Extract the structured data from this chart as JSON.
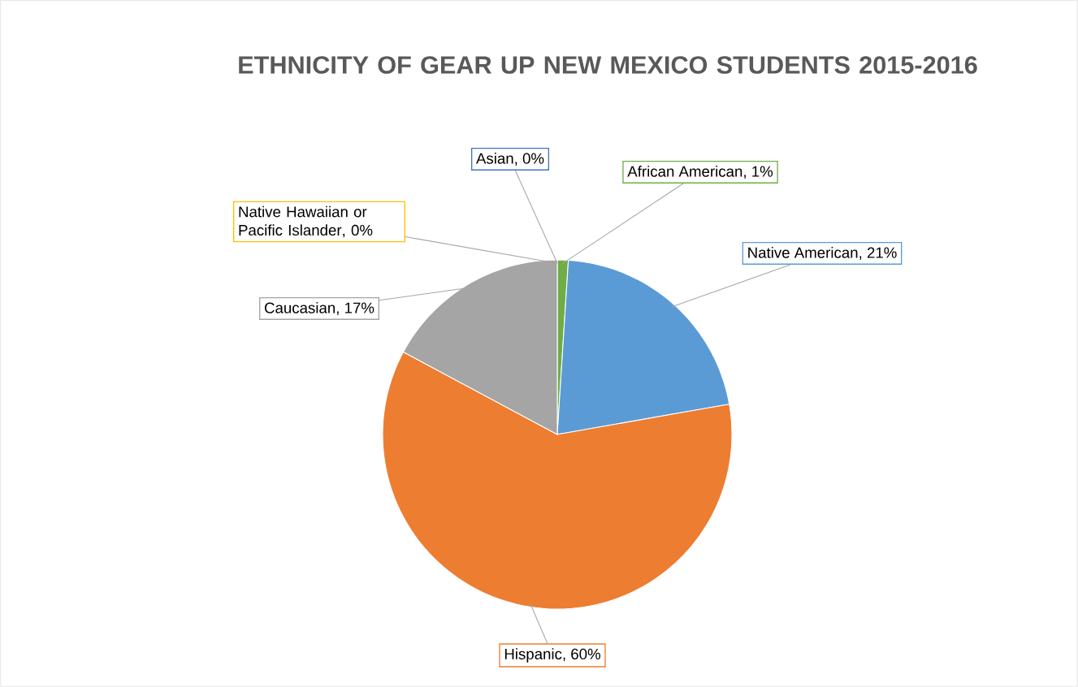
{
  "chart_data": {
    "type": "pie",
    "title": "ETHNICITY OF GEAR UP NEW MEXICO STUDENTS 2015-2016",
    "categories": [
      "African American",
      "Native American",
      "Hispanic",
      "Caucasian",
      "Native Hawaiian or Pacific Islander",
      "Asian"
    ],
    "values": [
      1,
      21,
      60,
      17,
      0,
      0
    ],
    "value_labels": [
      ", 1%",
      ", 21%",
      ", 60%",
      ", 17%",
      ", 0%",
      ", 0%"
    ],
    "colors": [
      "#70ad47",
      "#5b9bd5",
      "#ed7d31",
      "#a5a5a5",
      "#ffc000",
      "#4472c4"
    ]
  }
}
